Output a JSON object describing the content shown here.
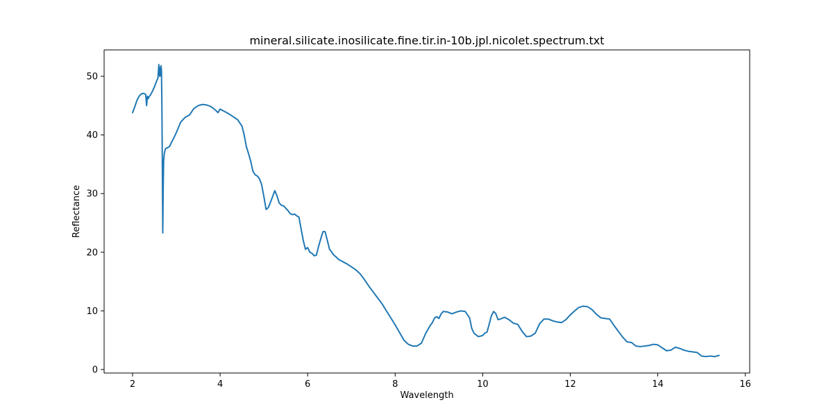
{
  "chart_data": {
    "type": "line",
    "title": "mineral.silicate.inosilicate.fine.tir.in-10b.jpl.nicolet.spectrum.txt",
    "xlabel": "Wavelength",
    "ylabel": "Reflectance",
    "xlim": [
      1.35,
      16.1
    ],
    "ylim": [
      -0.6,
      54.5
    ],
    "xticks": [
      2,
      4,
      6,
      8,
      10,
      12,
      14,
      16
    ],
    "yticks": [
      0,
      10,
      20,
      30,
      40,
      50
    ],
    "grid": false,
    "legend": "none",
    "line_color": "#1f77b4",
    "series": [
      {
        "x": [
          2.0,
          2.05,
          2.1,
          2.15,
          2.2,
          2.25,
          2.3,
          2.32,
          2.34,
          2.36,
          2.38,
          2.4,
          2.45,
          2.5,
          2.55,
          2.58,
          2.6,
          2.62,
          2.63,
          2.64,
          2.65,
          2.66,
          2.67,
          2.68,
          2.69,
          2.7,
          2.71,
          2.72,
          2.73,
          2.74,
          2.75,
          2.78,
          2.8,
          2.85,
          2.9,
          2.95,
          3.0,
          3.1,
          3.2,
          3.3,
          3.4,
          3.5,
          3.6,
          3.7,
          3.8,
          3.9,
          3.95,
          4.0,
          4.1,
          4.2,
          4.3,
          4.4,
          4.5,
          4.55,
          4.6,
          4.65,
          4.7,
          4.75,
          4.8,
          4.85,
          4.9,
          4.95,
          5.0,
          5.05,
          5.1,
          5.15,
          5.2,
          5.25,
          5.3,
          5.35,
          5.4,
          5.45,
          5.5,
          5.55,
          5.6,
          5.65,
          5.7,
          5.75,
          5.8,
          5.85,
          5.9,
          5.95,
          6.0,
          6.05,
          6.1,
          6.15,
          6.2,
          6.25,
          6.3,
          6.35,
          6.4,
          6.45,
          6.5,
          6.55,
          6.6,
          6.65,
          6.7,
          6.8,
          6.9,
          7.0,
          7.1,
          7.2,
          7.3,
          7.4,
          7.5,
          7.6,
          7.7,
          7.8,
          7.9,
          8.0,
          8.1,
          8.2,
          8.3,
          8.4,
          8.5,
          8.6,
          8.7,
          8.8,
          8.85,
          8.9,
          8.95,
          9.0,
          9.05,
          9.1,
          9.2,
          9.3,
          9.4,
          9.5,
          9.6,
          9.7,
          9.75,
          9.8,
          9.9,
          10.0,
          10.05,
          10.1,
          10.15,
          10.2,
          10.25,
          10.3,
          10.35,
          10.4,
          10.5,
          10.6,
          10.7,
          10.8,
          10.9,
          11.0,
          11.1,
          11.2,
          11.3,
          11.4,
          11.5,
          11.6,
          11.7,
          11.8,
          11.9,
          12.0,
          12.1,
          12.2,
          12.3,
          12.4,
          12.5,
          12.6,
          12.7,
          12.8,
          12.9,
          13.0,
          13.1,
          13.2,
          13.3,
          13.4,
          13.5,
          13.6,
          13.7,
          13.8,
          13.9,
          14.0,
          14.1,
          14.2,
          14.3,
          14.4,
          14.5,
          14.6,
          14.7,
          14.8,
          14.9,
          15.0,
          15.1,
          15.2,
          15.3,
          15.4
        ],
        "y": [
          43.8,
          44.8,
          45.9,
          46.6,
          47.0,
          47.1,
          46.9,
          45.0,
          46.6,
          46.2,
          46.6,
          46.7,
          47.4,
          48.2,
          49.2,
          49.7,
          52.0,
          50.0,
          51.5,
          50.1,
          51.8,
          51.0,
          45.0,
          35.0,
          23.3,
          31.0,
          35.5,
          36.5,
          37.0,
          37.3,
          37.6,
          37.8,
          37.8,
          38.1,
          38.9,
          39.6,
          40.4,
          42.2,
          43.0,
          43.4,
          44.5,
          45.0,
          45.2,
          45.1,
          44.8,
          44.2,
          43.8,
          44.4,
          44.0,
          43.6,
          43.1,
          42.6,
          41.5,
          40.0,
          38.0,
          36.8,
          35.5,
          33.8,
          33.2,
          33.0,
          32.5,
          31.5,
          29.5,
          27.3,
          27.6,
          28.5,
          29.5,
          30.5,
          29.6,
          28.4,
          28.0,
          27.9,
          27.5,
          27.1,
          26.6,
          26.4,
          26.5,
          26.2,
          26.0,
          24.0,
          22.0,
          20.5,
          20.8,
          20.0,
          19.8,
          19.4,
          19.5,
          21.0,
          22.3,
          23.5,
          23.5,
          22.0,
          20.5,
          20.0,
          19.5,
          19.2,
          18.8,
          18.4,
          18.0,
          17.5,
          17.0,
          16.3,
          15.3,
          14.2,
          13.2,
          12.2,
          11.2,
          10.0,
          8.8,
          7.6,
          6.3,
          5.0,
          4.3,
          4.0,
          4.0,
          4.5,
          6.2,
          7.5,
          8.0,
          8.8,
          9.0,
          8.7,
          9.5,
          9.9,
          9.8,
          9.5,
          9.8,
          10.0,
          9.9,
          8.8,
          7.0,
          6.2,
          5.6,
          5.8,
          6.2,
          6.4,
          7.8,
          9.2,
          9.9,
          9.5,
          8.5,
          8.6,
          8.9,
          8.5,
          7.9,
          7.7,
          6.5,
          5.6,
          5.7,
          6.2,
          7.8,
          8.6,
          8.6,
          8.3,
          8.1,
          8.0,
          8.5,
          9.3,
          10.0,
          10.6,
          10.8,
          10.7,
          10.2,
          9.4,
          8.8,
          8.7,
          8.6,
          7.5,
          6.5,
          5.5,
          4.7,
          4.6,
          4.0,
          3.9,
          4.0,
          4.1,
          4.3,
          4.2,
          3.7,
          3.2,
          3.3,
          3.8,
          3.6,
          3.3,
          3.1,
          3.0,
          2.9,
          2.3,
          2.2,
          2.3,
          2.2,
          2.4
        ]
      }
    ]
  }
}
